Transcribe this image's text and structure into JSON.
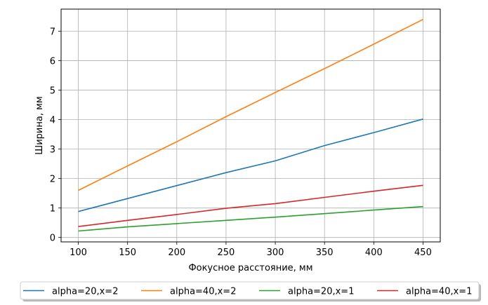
{
  "chart_data": {
    "type": "line",
    "title": "",
    "xlabel": "Фокусное расстояние, мм",
    "ylabel": "Ширина, мм",
    "x": [
      100,
      150,
      200,
      250,
      300,
      350,
      400,
      450
    ],
    "xlim": [
      82.5,
      467.5
    ],
    "ylim": [
      -0.15,
      7.75
    ],
    "xticks": [
      100,
      150,
      200,
      250,
      300,
      350,
      400,
      450
    ],
    "yticks": [
      0,
      1,
      2,
      3,
      4,
      5,
      6,
      7
    ],
    "grid": true,
    "legend_position": "bottom-center, below plot",
    "series": [
      {
        "name": "alpha=20,x=2",
        "color": "#1f77b4",
        "values": [
          0.88,
          1.32,
          1.76,
          2.2,
          2.6,
          3.12,
          3.56,
          4.02
        ]
      },
      {
        "name": "alpha=40,x=2",
        "color": "#ff7f0e",
        "values": [
          1.6,
          2.43,
          3.25,
          4.1,
          4.92,
          5.73,
          6.56,
          7.4
        ]
      },
      {
        "name": "alpha=20,x=1",
        "color": "#2ca02c",
        "values": [
          0.22,
          0.36,
          0.47,
          0.58,
          0.69,
          0.81,
          0.93,
          1.05
        ]
      },
      {
        "name": "alpha=40,x=1",
        "color": "#d62728",
        "values": [
          0.37,
          0.58,
          0.78,
          0.99,
          1.15,
          1.36,
          1.57,
          1.77
        ]
      }
    ]
  }
}
